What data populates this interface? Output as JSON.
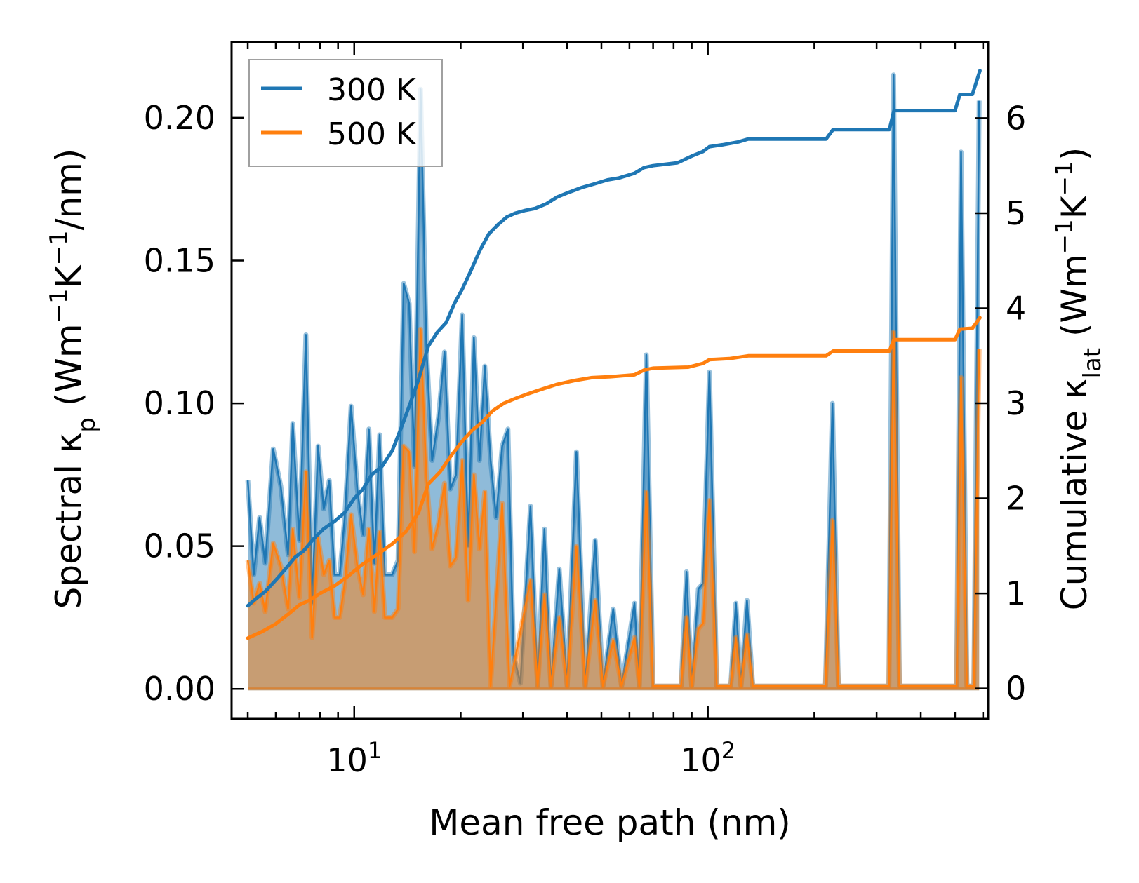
{
  "chart_data": {
    "type": "line",
    "title": "",
    "xlabel": "Mean free path (nm)",
    "xscale": "log",
    "xlim": [
      4.5,
      620
    ],
    "x_ticks": [
      {
        "base": "10",
        "exp": "1",
        "value": 10
      },
      {
        "base": "10",
        "exp": "2",
        "value": 100
      }
    ],
    "left_axis": {
      "label_parts": {
        "a": "Spectral κ",
        "sub": "p",
        "b": " (Wm",
        "sup1": "−1",
        "c": "K",
        "sup2": "−1",
        "d": "/nm)"
      },
      "ylim": [
        -0.0105,
        0.2265
      ],
      "ticks": [
        {
          "value": 0.0,
          "label": "0.00"
        },
        {
          "value": 0.05,
          "label": "0.05"
        },
        {
          "value": 0.1,
          "label": "0.10"
        },
        {
          "value": 0.15,
          "label": "0.15"
        },
        {
          "value": 0.2,
          "label": "0.20"
        }
      ]
    },
    "right_axis": {
      "label_parts": {
        "a": "Cumulative κ",
        "sub": "lat",
        "b": " (Wm",
        "sup1": "−1",
        "c": "K",
        "sup2": "−1",
        "d": ")"
      },
      "ylim": [
        -0.32,
        6.8
      ],
      "ticks": [
        {
          "value": 0,
          "label": "0"
        },
        {
          "value": 1,
          "label": "1"
        },
        {
          "value": 2,
          "label": "2"
        },
        {
          "value": 3,
          "label": "3"
        },
        {
          "value": 4,
          "label": "4"
        },
        {
          "value": 5,
          "label": "5"
        },
        {
          "value": 6,
          "label": "6"
        }
      ]
    },
    "legend": {
      "position": "top-left",
      "entries": [
        "300 K",
        "500 K"
      ]
    },
    "series": [
      {
        "name": "300 K",
        "color": "#1f77b4",
        "fill_color": "#1f77b4",
        "spectral": [
          [
            5.0,
            0.073
          ],
          [
            5.2,
            0.04
          ],
          [
            5.4,
            0.06
          ],
          [
            5.6,
            0.044
          ],
          [
            5.9,
            0.084
          ],
          [
            6.2,
            0.071
          ],
          [
            6.5,
            0.047
          ],
          [
            6.7,
            0.093
          ],
          [
            7.0,
            0.052
          ],
          [
            7.3,
            0.124
          ],
          [
            7.6,
            0.03
          ],
          [
            7.9,
            0.085
          ],
          [
            8.2,
            0.063
          ],
          [
            8.5,
            0.073
          ],
          [
            8.8,
            0.04
          ],
          [
            9.1,
            0.04
          ],
          [
            9.4,
            0.06
          ],
          [
            9.8,
            0.099
          ],
          [
            10.2,
            0.07
          ],
          [
            10.6,
            0.054
          ],
          [
            11.0,
            0.091
          ],
          [
            11.4,
            0.044
          ],
          [
            11.8,
            0.089
          ],
          [
            12.2,
            0.04
          ],
          [
            12.8,
            0.04
          ],
          [
            13.3,
            0.045
          ],
          [
            13.8,
            0.142
          ],
          [
            14.3,
            0.135
          ],
          [
            14.8,
            0.078
          ],
          [
            15.4,
            0.21
          ],
          [
            16.0,
            0.12
          ],
          [
            16.6,
            0.08
          ],
          [
            17.3,
            0.095
          ],
          [
            18.0,
            0.118
          ],
          [
            18.7,
            0.07
          ],
          [
            19.4,
            0.075
          ],
          [
            20.2,
            0.131
          ],
          [
            21.0,
            0.05
          ],
          [
            21.8,
            0.123
          ],
          [
            22.6,
            0.08
          ],
          [
            23.4,
            0.113
          ],
          [
            24.3,
            0.08
          ],
          [
            25.2,
            0.06
          ],
          [
            26.2,
            0.085
          ],
          [
            27.2,
            0.091
          ],
          [
            28.2,
            0.012
          ],
          [
            29.5,
            0.002
          ],
          [
            31.5,
            0.064
          ],
          [
            33.0,
            0.001
          ],
          [
            34.5,
            0.056
          ],
          [
            36.0,
            0.001
          ],
          [
            38.0,
            0.042
          ],
          [
            40.0,
            0.001
          ],
          [
            42.5,
            0.083
          ],
          [
            45.0,
            0.001
          ],
          [
            48.0,
            0.052
          ],
          [
            50.5,
            0.001
          ],
          [
            54.0,
            0.028
          ],
          [
            57.0,
            0.001
          ],
          [
            62.0,
            0.03
          ],
          [
            64.0,
            0.001
          ],
          [
            67.0,
            0.117
          ],
          [
            70.0,
            0.001
          ],
          [
            84.0,
            0.001
          ],
          [
            87.0,
            0.041
          ],
          [
            90.0,
            0.001
          ],
          [
            94.0,
            0.035
          ],
          [
            97.0,
            0.037
          ],
          [
            101.0,
            0.111
          ],
          [
            106.0,
            0.001
          ],
          [
            116.0,
            0.001
          ],
          [
            120.0,
            0.03
          ],
          [
            124.0,
            0.001
          ],
          [
            129.0,
            0.031
          ],
          [
            134.0,
            0.001
          ],
          [
            215.0,
            0.001
          ],
          [
            225.0,
            0.1
          ],
          [
            234.0,
            0.001
          ],
          [
            325.0,
            0.001
          ],
          [
            335.0,
            0.215
          ],
          [
            348.0,
            0.001
          ],
          [
            505.0,
            0.001
          ],
          [
            520.0,
            0.188
          ],
          [
            540.0,
            0.001
          ],
          [
            565.0,
            0.001
          ],
          [
            585.0,
            0.206
          ]
        ],
        "cumulative": [
          [
            5.0,
            0.87
          ],
          [
            5.3,
            0.95
          ],
          [
            5.6,
            1.02
          ],
          [
            6.0,
            1.14
          ],
          [
            6.4,
            1.26
          ],
          [
            6.8,
            1.38
          ],
          [
            7.2,
            1.45
          ],
          [
            7.7,
            1.58
          ],
          [
            8.2,
            1.68
          ],
          [
            8.8,
            1.76
          ],
          [
            9.4,
            1.85
          ],
          [
            10.0,
            2.0
          ],
          [
            10.6,
            2.1
          ],
          [
            11.2,
            2.25
          ],
          [
            12.0,
            2.34
          ],
          [
            12.8,
            2.5
          ],
          [
            13.6,
            2.75
          ],
          [
            14.4,
            3.0
          ],
          [
            15.2,
            3.25
          ],
          [
            16.2,
            3.6
          ],
          [
            17.2,
            3.75
          ],
          [
            18.2,
            3.85
          ],
          [
            19.2,
            4.05
          ],
          [
            20.2,
            4.2
          ],
          [
            21.4,
            4.4
          ],
          [
            22.6,
            4.6
          ],
          [
            24.0,
            4.78
          ],
          [
            25.5,
            4.88
          ],
          [
            27.0,
            4.96
          ],
          [
            28.5,
            5.0
          ],
          [
            30.5,
            5.03
          ],
          [
            32.5,
            5.05
          ],
          [
            35.0,
            5.1
          ],
          [
            37.5,
            5.17
          ],
          [
            40.5,
            5.22
          ],
          [
            44.0,
            5.27
          ],
          [
            48.0,
            5.31
          ],
          [
            52.0,
            5.35
          ],
          [
            56.0,
            5.37
          ],
          [
            62.0,
            5.42
          ],
          [
            66.0,
            5.48
          ],
          [
            70.0,
            5.5
          ],
          [
            82.0,
            5.53
          ],
          [
            90.0,
            5.6
          ],
          [
            97.0,
            5.65
          ],
          [
            101.0,
            5.7
          ],
          [
            110.0,
            5.72
          ],
          [
            122.0,
            5.75
          ],
          [
            130.0,
            5.78
          ],
          [
            216.0,
            5.78
          ],
          [
            226.0,
            5.88
          ],
          [
            326.0,
            5.88
          ],
          [
            336.0,
            6.08
          ],
          [
            500.0,
            6.08
          ],
          [
            516.0,
            6.25
          ],
          [
            560.0,
            6.25
          ],
          [
            588.0,
            6.5
          ]
        ]
      },
      {
        "name": "500 K",
        "color": "#ff7f0e",
        "fill_color": "#ff7f0e",
        "spectral": [
          [
            5.0,
            0.045
          ],
          [
            5.2,
            0.03
          ],
          [
            5.4,
            0.037
          ],
          [
            5.6,
            0.027
          ],
          [
            5.9,
            0.051
          ],
          [
            6.2,
            0.043
          ],
          [
            6.5,
            0.028
          ],
          [
            6.7,
            0.056
          ],
          [
            7.0,
            0.032
          ],
          [
            7.3,
            0.076
          ],
          [
            7.6,
            0.018
          ],
          [
            7.9,
            0.053
          ],
          [
            8.2,
            0.04
          ],
          [
            8.5,
            0.045
          ],
          [
            8.8,
            0.025
          ],
          [
            9.1,
            0.025
          ],
          [
            9.4,
            0.037
          ],
          [
            9.8,
            0.061
          ],
          [
            10.2,
            0.043
          ],
          [
            10.6,
            0.033
          ],
          [
            11.0,
            0.056
          ],
          [
            11.4,
            0.027
          ],
          [
            11.8,
            0.055
          ],
          [
            12.2,
            0.025
          ],
          [
            12.8,
            0.025
          ],
          [
            13.3,
            0.028
          ],
          [
            13.8,
            0.085
          ],
          [
            14.3,
            0.083
          ],
          [
            14.8,
            0.048
          ],
          [
            15.4,
            0.126
          ],
          [
            16.0,
            0.074
          ],
          [
            16.6,
            0.049
          ],
          [
            17.3,
            0.058
          ],
          [
            18.0,
            0.072
          ],
          [
            18.7,
            0.043
          ],
          [
            19.4,
            0.046
          ],
          [
            20.2,
            0.08
          ],
          [
            21.0,
            0.031
          ],
          [
            21.8,
            0.075
          ],
          [
            22.6,
            0.049
          ],
          [
            23.4,
            0.069
          ],
          [
            24.3,
            0.001
          ],
          [
            26.2,
            0.065
          ],
          [
            27.5,
            0.001
          ],
          [
            31.5,
            0.038
          ],
          [
            33.0,
            0.001
          ],
          [
            34.5,
            0.033
          ],
          [
            36.0,
            0.001
          ],
          [
            38.0,
            0.025
          ],
          [
            40.0,
            0.001
          ],
          [
            42.5,
            0.05
          ],
          [
            45.0,
            0.001
          ],
          [
            48.0,
            0.031
          ],
          [
            50.5,
            0.001
          ],
          [
            54.0,
            0.017
          ],
          [
            57.0,
            0.001
          ],
          [
            62.0,
            0.018
          ],
          [
            64.0,
            0.001
          ],
          [
            67.0,
            0.069
          ],
          [
            70.0,
            0.001
          ],
          [
            84.0,
            0.001
          ],
          [
            87.0,
            0.025
          ],
          [
            90.0,
            0.001
          ],
          [
            94.0,
            0.021
          ],
          [
            97.0,
            0.023
          ],
          [
            101.0,
            0.066
          ],
          [
            106.0,
            0.001
          ],
          [
            116.0,
            0.001
          ],
          [
            120.0,
            0.018
          ],
          [
            124.0,
            0.001
          ],
          [
            129.0,
            0.019
          ],
          [
            134.0,
            0.001
          ],
          [
            215.0,
            0.001
          ],
          [
            225.0,
            0.059
          ],
          [
            234.0,
            0.001
          ],
          [
            325.0,
            0.001
          ],
          [
            335.0,
            0.125
          ],
          [
            348.0,
            0.001
          ],
          [
            505.0,
            0.001
          ],
          [
            520.0,
            0.109
          ],
          [
            540.0,
            0.001
          ],
          [
            565.0,
            0.001
          ],
          [
            585.0,
            0.119
          ]
        ],
        "cumulative": [
          [
            5.0,
            0.53
          ],
          [
            5.5,
            0.6
          ],
          [
            6.0,
            0.68
          ],
          [
            6.5,
            0.78
          ],
          [
            7.0,
            0.88
          ],
          [
            7.5,
            0.93
          ],
          [
            8.0,
            1.0
          ],
          [
            8.8,
            1.08
          ],
          [
            9.6,
            1.18
          ],
          [
            10.5,
            1.3
          ],
          [
            11.5,
            1.4
          ],
          [
            12.8,
            1.52
          ],
          [
            14.0,
            1.65
          ],
          [
            15.2,
            1.85
          ],
          [
            16.2,
            2.15
          ],
          [
            17.5,
            2.28
          ],
          [
            18.8,
            2.45
          ],
          [
            20.2,
            2.6
          ],
          [
            21.6,
            2.72
          ],
          [
            23.0,
            2.8
          ],
          [
            24.6,
            2.92
          ],
          [
            26.5,
            3.0
          ],
          [
            28.5,
            3.05
          ],
          [
            31.0,
            3.1
          ],
          [
            34.0,
            3.15
          ],
          [
            37.5,
            3.2
          ],
          [
            42.0,
            3.24
          ],
          [
            47.0,
            3.27
          ],
          [
            53.0,
            3.28
          ],
          [
            62.0,
            3.3
          ],
          [
            66.0,
            3.35
          ],
          [
            70.0,
            3.37
          ],
          [
            88.0,
            3.38
          ],
          [
            97.0,
            3.42
          ],
          [
            101.0,
            3.46
          ],
          [
            115.0,
            3.47
          ],
          [
            130.0,
            3.5
          ],
          [
            216.0,
            3.5
          ],
          [
            226.0,
            3.55
          ],
          [
            326.0,
            3.55
          ],
          [
            336.0,
            3.67
          ],
          [
            500.0,
            3.67
          ],
          [
            516.0,
            3.78
          ],
          [
            560.0,
            3.79
          ],
          [
            588.0,
            3.9
          ]
        ]
      }
    ]
  }
}
